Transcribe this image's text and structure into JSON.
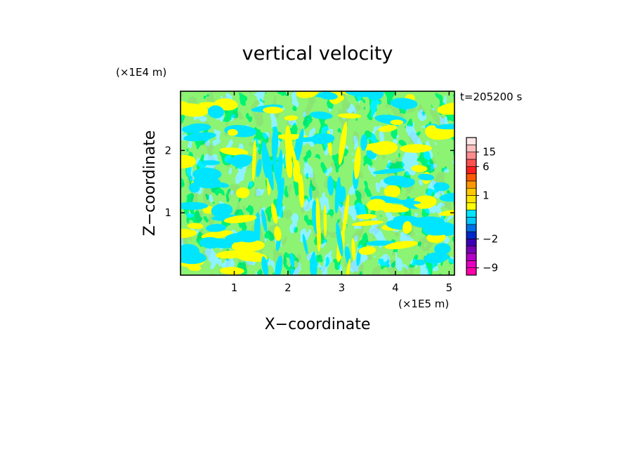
{
  "chart_data": {
    "type": "heatmap",
    "title": "vertical velocity",
    "xlabel": "X−coordinate",
    "ylabel": "Z−coordinate",
    "x_unit": "(×1E5 m)",
    "y_unit": "(×1E4 m)",
    "time_label": "t=205200 s",
    "xlim": [
      0,
      5.1
    ],
    "ylim": [
      0,
      2.95
    ],
    "xticks": [
      1,
      2,
      3,
      4,
      5
    ],
    "yticks": [
      1,
      2
    ],
    "xtick_labels": [
      "1",
      "2",
      "3",
      "4",
      "5"
    ],
    "ytick_labels": [
      "1",
      "2"
    ],
    "field_description_colors": {
      "positive": "#ffff00",
      "negative": "#00e5ff"
    },
    "colorbar": {
      "levels": [
        -12,
        -9,
        -6,
        -4,
        -3,
        -2,
        -1.5,
        -1,
        -0.5,
        0,
        0.5,
        1,
        1.5,
        2,
        4,
        6,
        10,
        15,
        20,
        25
      ],
      "colors": [
        "#ff00aa",
        "#e600c0",
        "#b400c8",
        "#7800b4",
        "#3c00b4",
        "#0028c8",
        "#0070e6",
        "#00c8ff",
        "#00e5ff",
        "#ffff00",
        "#ffe600",
        "#ffc800",
        "#ff9600",
        "#ff5a00",
        "#ff1e1e",
        "#ff5050",
        "#ff8c8c",
        "#ffbebe",
        "#ffe6e6"
      ],
      "labels": [
        "15",
        "6",
        "1",
        "−2",
        "−9"
      ],
      "label_values": [
        15,
        6,
        1,
        -2,
        -9
      ]
    }
  }
}
